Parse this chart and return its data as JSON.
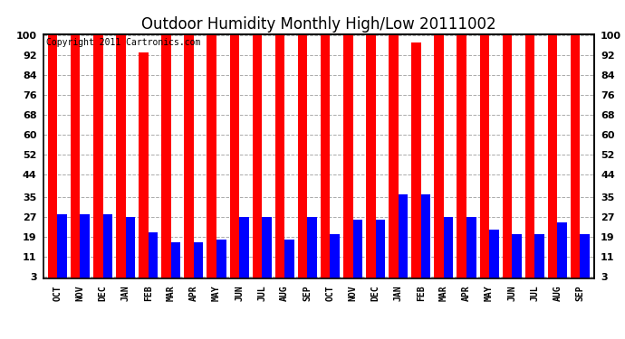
{
  "title": "Outdoor Humidity Monthly High/Low 20111002",
  "copyright_text": "Copyright 2011 Cartronics.com",
  "months": [
    "OCT",
    "NOV",
    "DEC",
    "JAN",
    "FEB",
    "MAR",
    "APR",
    "MAY",
    "JUN",
    "JUL",
    "AUG",
    "SEP",
    "OCT",
    "NOV",
    "DEC",
    "JAN",
    "FEB",
    "MAR",
    "APR",
    "MAY",
    "JUN",
    "JUL",
    "AUG",
    "SEP"
  ],
  "highs": [
    100,
    100,
    100,
    100,
    93,
    100,
    100,
    100,
    100,
    100,
    100,
    100,
    100,
    100,
    100,
    100,
    97,
    100,
    100,
    100,
    100,
    100,
    100,
    100
  ],
  "lows": [
    28,
    28,
    28,
    27,
    21,
    17,
    17,
    18,
    27,
    27,
    18,
    27,
    20,
    26,
    26,
    36,
    36,
    27,
    27,
    22,
    20,
    20,
    25,
    20
  ],
  "high_color": "#ff0000",
  "low_color": "#0000ff",
  "background_color": "#ffffff",
  "yticks": [
    3,
    11,
    19,
    27,
    35,
    44,
    52,
    60,
    68,
    76,
    84,
    92,
    100
  ],
  "ymin": 3,
  "ymax": 100,
  "bar_width": 0.42,
  "grid_color": "#aaaaaa",
  "title_fontsize": 12,
  "copyright_fontsize": 7,
  "tick_fontsize": 8,
  "xlabel_fontsize": 7
}
